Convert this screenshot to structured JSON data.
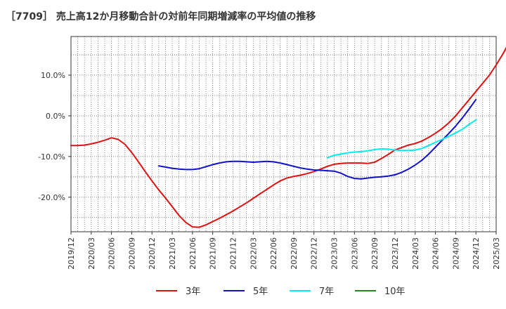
{
  "chart_data": {
    "type": "line",
    "title": "［7709］ 売上高12か月移動合計の対前年同期増減率の平均値の推移",
    "xlabel": "",
    "ylabel": "",
    "ylim": [
      -28.5,
      19.5
    ],
    "y_ticks": [
      {
        "value": 10,
        "label": "10.0%"
      },
      {
        "value": 0,
        "label": "0.0%"
      },
      {
        "value": -10,
        "label": "-10.0%"
      },
      {
        "value": -20,
        "label": "-20.0%"
      }
    ],
    "x_ticks": [
      "2019/12",
      "2020/03",
      "2020/06",
      "2020/09",
      "2020/12",
      "2021/03",
      "2021/06",
      "2021/09",
      "2021/12",
      "2022/03",
      "2022/06",
      "2022/09",
      "2022/12",
      "2023/03",
      "2023/06",
      "2023/09",
      "2023/12",
      "2024/03",
      "2024/06",
      "2024/09",
      "2024/12",
      "2025/03"
    ],
    "legend_position": "bottom",
    "grid": true,
    "series": [
      {
        "name": "3年",
        "color": "#dd1111",
        "start": "2019/12",
        "values": [
          -7.3,
          -7.3,
          -7.2,
          -6.9,
          -6.5,
          -6.0,
          -5.4,
          -5.8,
          -7.0,
          -9.0,
          -11.3,
          -13.7,
          -16.0,
          -18.2,
          -20.2,
          -22.3,
          -24.5,
          -26.2,
          -27.3,
          -27.4,
          -26.8,
          -26.0,
          -25.2,
          -24.3,
          -23.4,
          -22.4,
          -21.4,
          -20.3,
          -19.2,
          -18.1,
          -17.0,
          -16.0,
          -15.3,
          -14.9,
          -14.6,
          -14.2,
          -13.7,
          -13.1,
          -12.4,
          -11.9,
          -11.7,
          -11.6,
          -11.6,
          -11.6,
          -11.7,
          -11.4,
          -10.5,
          -9.5,
          -8.4,
          -7.8,
          -7.2,
          -6.8,
          -6.2,
          -5.3,
          -4.3,
          -3.1,
          -1.7,
          0.0,
          2.0,
          4.0,
          6.0,
          8.0,
          10.0,
          12.5,
          15.2,
          18.3
        ]
      },
      {
        "name": "5年",
        "color": "#1111cc",
        "start": "2021/01",
        "values": [
          -12.3,
          -12.6,
          -12.9,
          -13.1,
          -13.2,
          -13.2,
          -13.0,
          -12.5,
          -12.0,
          -11.6,
          -11.3,
          -11.2,
          -11.2,
          -11.3,
          -11.4,
          -11.3,
          -11.2,
          -11.3,
          -11.6,
          -12.0,
          -12.4,
          -12.8,
          -13.1,
          -13.3,
          -13.4,
          -13.5,
          -13.6,
          -14.1,
          -14.9,
          -15.4,
          -15.5,
          -15.3,
          -15.1,
          -15.0,
          -14.8,
          -14.5,
          -13.9,
          -13.1,
          -12.1,
          -10.9,
          -9.4,
          -7.7,
          -6.0,
          -4.3,
          -2.5,
          -0.5,
          1.7,
          4.0
        ]
      },
      {
        "name": "7年",
        "color": "#00eeee",
        "start": "2023/02",
        "values": [
          -10.3,
          -9.7,
          -9.4,
          -9.1,
          -8.9,
          -8.8,
          -8.6,
          -8.3,
          -8.1,
          -8.2,
          -8.4,
          -8.5,
          -8.5,
          -8.4,
          -8.0,
          -7.3,
          -6.5,
          -5.8,
          -5.0,
          -4.2,
          -3.3,
          -2.1,
          -1.0
        ]
      },
      {
        "name": "10年",
        "color": "#228822",
        "start": "2025/03",
        "values": []
      }
    ]
  }
}
